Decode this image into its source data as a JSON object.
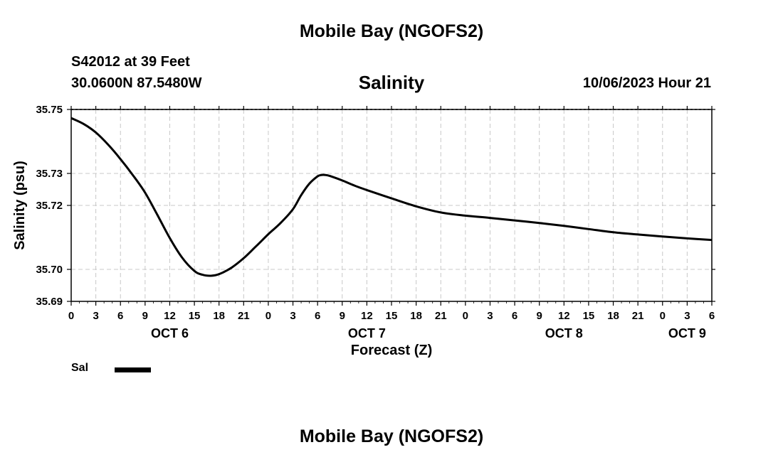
{
  "header": {
    "title": "Mobile Bay (NGOFS2)",
    "station": "S42012 at 39 Feet",
    "coords": "30.0600N  87.5480W",
    "timestamp": "10/06/2023 Hour 21"
  },
  "footer": {
    "title": "Mobile Bay (NGOFS2)"
  },
  "legend": {
    "label": "Sal"
  },
  "chart_data": {
    "type": "line",
    "title": "Salinity",
    "xlabel": "Forecast (Z)",
    "ylabel": "Salinity (psu)",
    "xlim": [
      0,
      78
    ],
    "ylim": [
      35.69,
      35.75
    ],
    "grid": true,
    "y_ticks": [
      "35.69",
      "35.70",
      "35.72",
      "35.73",
      "35.75"
    ],
    "y_tick_values": [
      35.69,
      35.7,
      35.72,
      35.73,
      35.75
    ],
    "x_ticks": [
      0,
      3,
      6,
      9,
      12,
      15,
      18,
      21,
      24,
      27,
      30,
      33,
      36,
      39,
      42,
      45,
      48,
      51,
      54,
      57,
      60,
      63,
      66,
      69,
      72,
      75,
      78
    ],
    "x_tick_labels": [
      "0",
      "3",
      "6",
      "9",
      "12",
      "15",
      "18",
      "21",
      "0",
      "3",
      "6",
      "9",
      "12",
      "15",
      "18",
      "21",
      "0",
      "3",
      "6",
      "9",
      "12",
      "15",
      "18",
      "21",
      "0",
      "3",
      "6"
    ],
    "day_labels": [
      {
        "label": "OCT 6",
        "x": 12
      },
      {
        "label": "OCT 7",
        "x": 36
      },
      {
        "label": "OCT 8",
        "x": 60
      },
      {
        "label": "OCT 9",
        "x": 75
      }
    ],
    "series": [
      {
        "name": "Sal",
        "x": [
          0,
          1.5,
          3,
          4.5,
          6,
          7.5,
          9,
          10.5,
          12,
          13.5,
          15,
          16,
          17,
          18,
          19.5,
          21,
          22.5,
          24,
          25.5,
          27,
          28,
          29,
          30,
          30.5,
          31,
          31.5,
          33,
          34.5,
          36,
          39,
          42,
          45,
          48,
          51,
          54,
          57,
          60,
          63,
          66,
          69,
          72,
          75,
          78
        ],
        "values": [
          35.7473,
          35.7455,
          35.7428,
          35.739,
          35.7345,
          35.7295,
          35.724,
          35.717,
          35.7098,
          35.7037,
          35.6995,
          35.6983,
          35.698,
          35.6985,
          35.7005,
          35.7035,
          35.7072,
          35.711,
          35.7145,
          35.7188,
          35.7232,
          35.7268,
          35.7291,
          35.7295,
          35.7295,
          35.7292,
          35.7278,
          35.7262,
          35.7248,
          35.7222,
          35.7197,
          35.7178,
          35.7168,
          35.7161,
          35.7153,
          35.7145,
          35.7136,
          35.7126,
          35.7116,
          35.7109,
          35.7103,
          35.7097,
          35.7092
        ]
      }
    ]
  }
}
